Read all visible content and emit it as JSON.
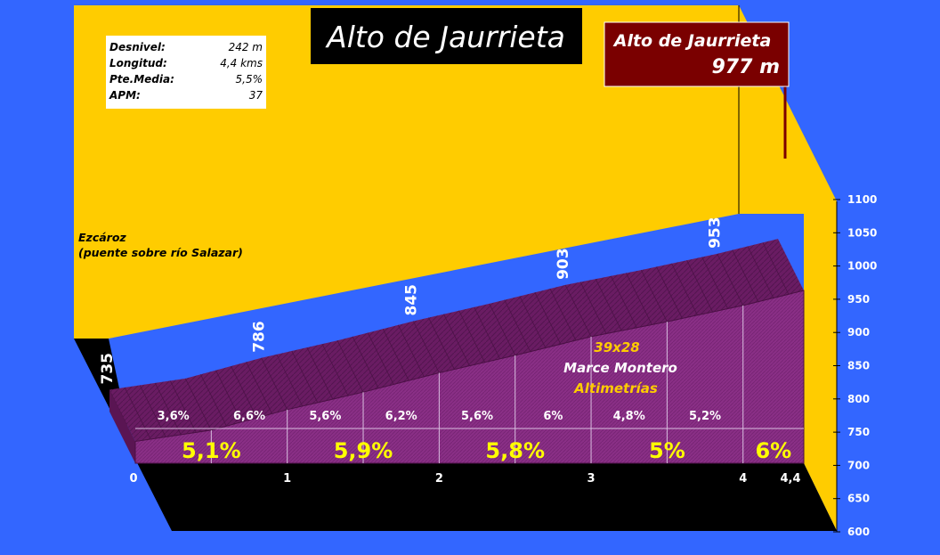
{
  "title": "Alto de Jaurrieta",
  "summit": {
    "name": "Alto de Jaurrieta",
    "altitude": "977 m"
  },
  "stats": [
    {
      "label": "Desnivel:",
      "value": "242 m"
    },
    {
      "label": "Longitud:",
      "value": "4,4 kms"
    },
    {
      "label": "Pte.Media:",
      "value": "5,5%"
    },
    {
      "label": "APM:",
      "value": "37"
    }
  ],
  "start": {
    "line1": "Ezcároz",
    "line2": "(puente sobre río Salazar)"
  },
  "credit": {
    "line1": "39x28",
    "line2": "Marce Montero",
    "line3": "Altimetrías"
  },
  "colors": {
    "background": "#3366ff",
    "wall": "#ffcc00",
    "profile_face": "#8a2f86",
    "profile_top": "#6a1c63",
    "summit_box": "#7a0000",
    "title_box": "#000000",
    "floor": "#000000",
    "label_yellow": "#ffff00",
    "label_white": "#ffffff"
  },
  "chart_data": {
    "type": "area",
    "title": "Alto de Jaurrieta",
    "xlabel": "",
    "ylabel": "",
    "xlim": [
      0,
      4.4
    ],
    "ylim": [
      600,
      1100
    ],
    "y_ticks": [
      "600",
      "650",
      "700",
      "750",
      "800",
      "850",
      "900",
      "950",
      "1000",
      "1050",
      "1100"
    ],
    "x_ticks": [
      {
        "x": 0,
        "label": "0"
      },
      {
        "x": 1,
        "label": "1"
      },
      {
        "x": 2,
        "label": "2"
      },
      {
        "x": 3,
        "label": "3"
      },
      {
        "x": 4,
        "label": "4"
      },
      {
        "x": 4.4,
        "label": "4,4"
      }
    ],
    "profile": [
      {
        "x": 0,
        "y": 735
      },
      {
        "x": 0.5,
        "y": 753
      },
      {
        "x": 1,
        "y": 786
      },
      {
        "x": 1.5,
        "y": 814
      },
      {
        "x": 2,
        "y": 845
      },
      {
        "x": 2.5,
        "y": 873
      },
      {
        "x": 3,
        "y": 903
      },
      {
        "x": 3.5,
        "y": 927
      },
      {
        "x": 4,
        "y": 953
      },
      {
        "x": 4.4,
        "y": 977
      }
    ],
    "altitude_labels": [
      {
        "x": 0,
        "y": 735,
        "label": "735"
      },
      {
        "x": 1,
        "y": 786,
        "label": "786"
      },
      {
        "x": 2,
        "y": 845,
        "label": "845"
      },
      {
        "x": 3,
        "y": 903,
        "label": "903"
      },
      {
        "x": 4,
        "y": 953,
        "label": "953"
      }
    ],
    "half_km_gradients": [
      {
        "x_start": 0,
        "x_end": 0.5,
        "label": "3,6%"
      },
      {
        "x_start": 0.5,
        "x_end": 1,
        "label": "6,6%"
      },
      {
        "x_start": 1,
        "x_end": 1.5,
        "label": "5,6%"
      },
      {
        "x_start": 1.5,
        "x_end": 2,
        "label": "6,2%"
      },
      {
        "x_start": 2,
        "x_end": 2.5,
        "label": "5,6%"
      },
      {
        "x_start": 2.5,
        "x_end": 3,
        "label": "6%"
      },
      {
        "x_start": 3,
        "x_end": 3.5,
        "label": "4,8%"
      },
      {
        "x_start": 3.5,
        "x_end": 4,
        "label": "5,2%"
      }
    ],
    "km_gradients": [
      {
        "x_start": 0,
        "x_end": 1,
        "label": "5,1%"
      },
      {
        "x_start": 1,
        "x_end": 2,
        "label": "5,9%"
      },
      {
        "x_start": 2,
        "x_end": 3,
        "label": "5,8%"
      },
      {
        "x_start": 3,
        "x_end": 4,
        "label": "5%"
      },
      {
        "x_start": 4,
        "x_end": 4.4,
        "label": "6%"
      }
    ]
  }
}
